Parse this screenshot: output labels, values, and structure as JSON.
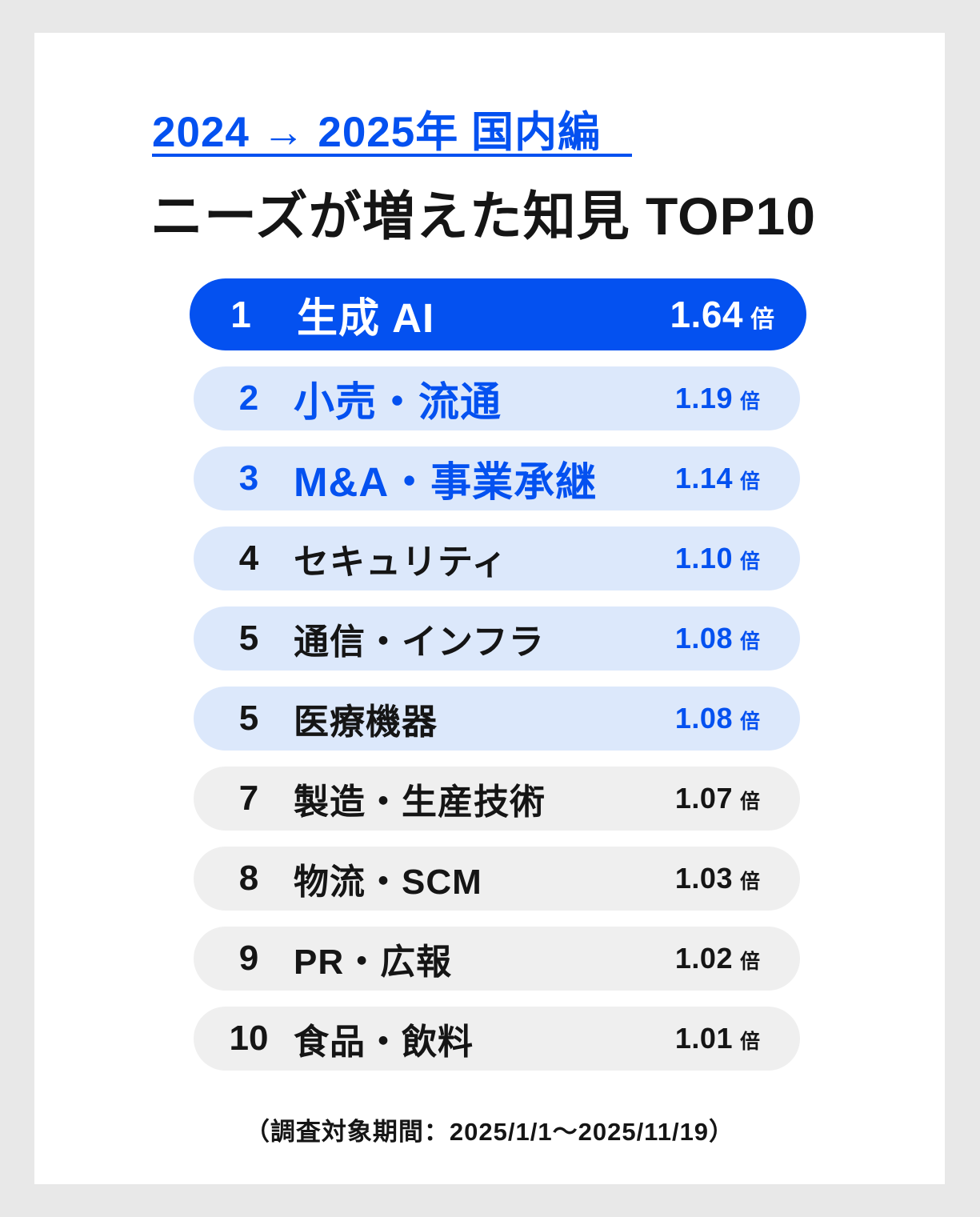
{
  "header": {
    "period_label": "2024 → 2025年 国内編",
    "title": "ニーズが増えた知見 TOP10"
  },
  "footnote": "（調査対象期間：2025/1/1～2025/11/19）",
  "colors": {
    "accent": "#0451F0",
    "light_blue": "#DCE8FB",
    "gray": "#EFEFEF",
    "page_bg": "#E8E8E8",
    "card_bg": "#FFFFFF",
    "dark": "#151515"
  },
  "chart_data": {
    "type": "table",
    "title": "ニーズが増えた知見 TOP10",
    "subtitle": "2024 → 2025年 国内編",
    "unit": "倍",
    "rows": [
      {
        "rank": "1",
        "label": "生成 AI",
        "value": "1.64",
        "unit": "倍",
        "style": "primary"
      },
      {
        "rank": "2",
        "label": "小売・流通",
        "value": "1.19",
        "unit": "倍",
        "style": "blue"
      },
      {
        "rank": "3",
        "label": "M&A・事業承継",
        "value": "1.14",
        "unit": "倍",
        "style": "blue"
      },
      {
        "rank": "4",
        "label": "セキュリティ",
        "value": "1.10",
        "unit": "倍",
        "style": "blue-value"
      },
      {
        "rank": "5",
        "label": "通信・インフラ",
        "value": "1.08",
        "unit": "倍",
        "style": "blue-value"
      },
      {
        "rank": "5",
        "label": "医療機器",
        "value": "1.08",
        "unit": "倍",
        "style": "blue-value"
      },
      {
        "rank": "7",
        "label": "製造・生産技術",
        "value": "1.07",
        "unit": "倍",
        "style": "gray"
      },
      {
        "rank": "8",
        "label": "物流・SCM",
        "value": "1.03",
        "unit": "倍",
        "style": "gray"
      },
      {
        "rank": "9",
        "label": "PR・広報",
        "value": "1.02",
        "unit": "倍",
        "style": "gray"
      },
      {
        "rank": "10",
        "label": "食品・飲料",
        "value": "1.01",
        "unit": "倍",
        "style": "gray"
      }
    ],
    "footnote": "（調査対象期間：2025/1/1～2025/11/19）"
  }
}
